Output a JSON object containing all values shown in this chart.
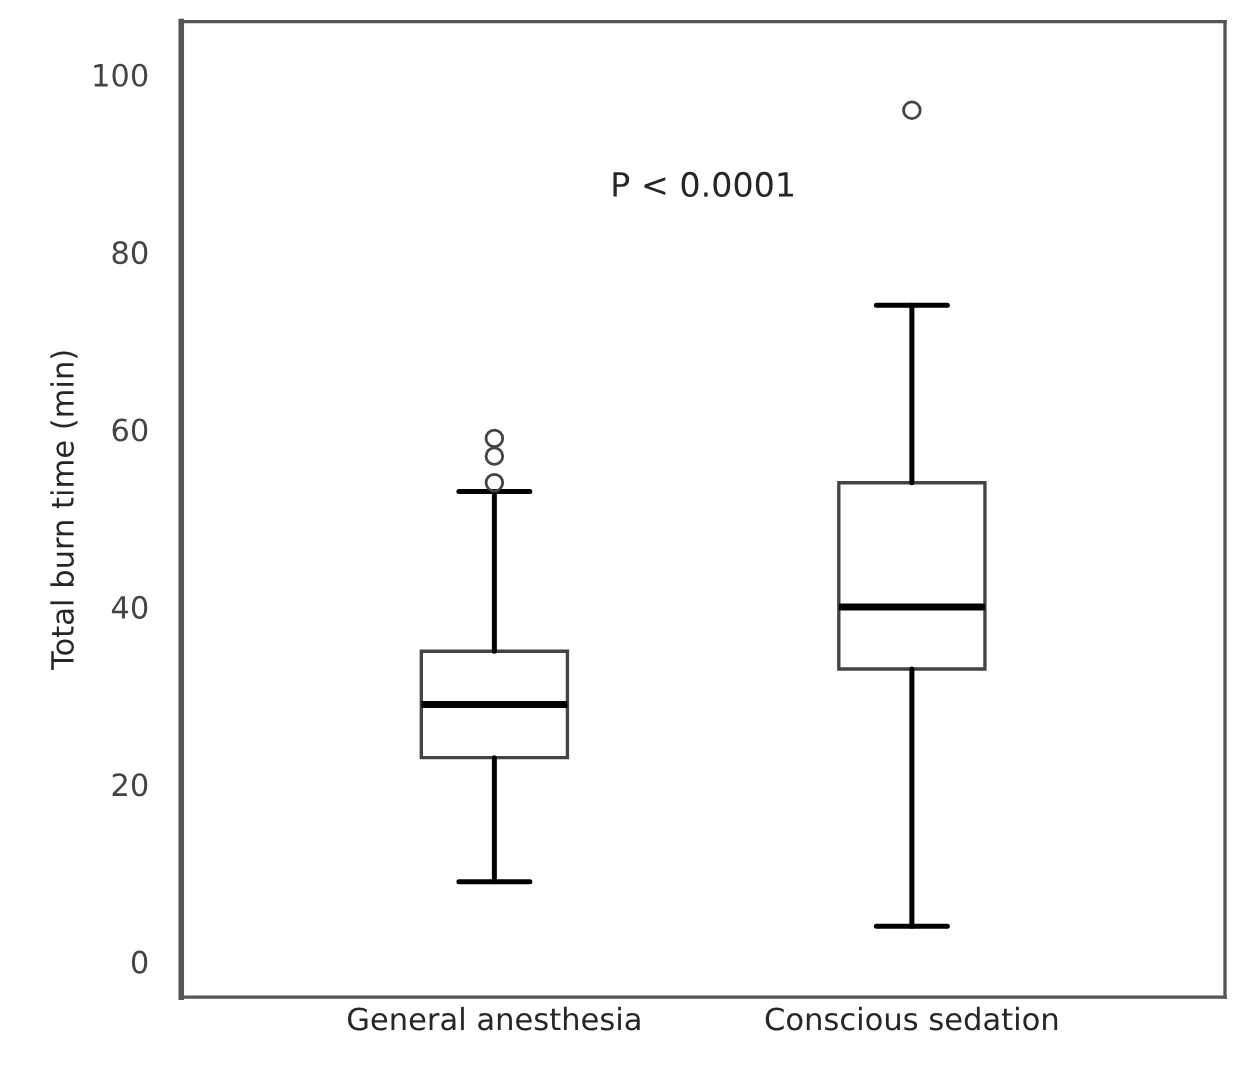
{
  "chart_data": {
    "type": "box",
    "ylabel": "Total burn time (min)",
    "categories": [
      "General anesthesia",
      "Conscious sedation"
    ],
    "boxes": [
      {
        "low": 9,
        "q1": 23,
        "median": 29,
        "q3": 35,
        "high": 53,
        "outliers": [
          54,
          57,
          59
        ]
      },
      {
        "low": 4,
        "q1": 33,
        "median": 40,
        "q3": 54,
        "high": 74,
        "outliers": [
          96
        ]
      }
    ],
    "ylim": [
      -4,
      106
    ],
    "yticks": [
      0,
      20,
      40,
      60,
      80,
      100
    ],
    "annotations": [
      "P < 0.0001"
    ],
    "grid": false,
    "legend": false
  }
}
